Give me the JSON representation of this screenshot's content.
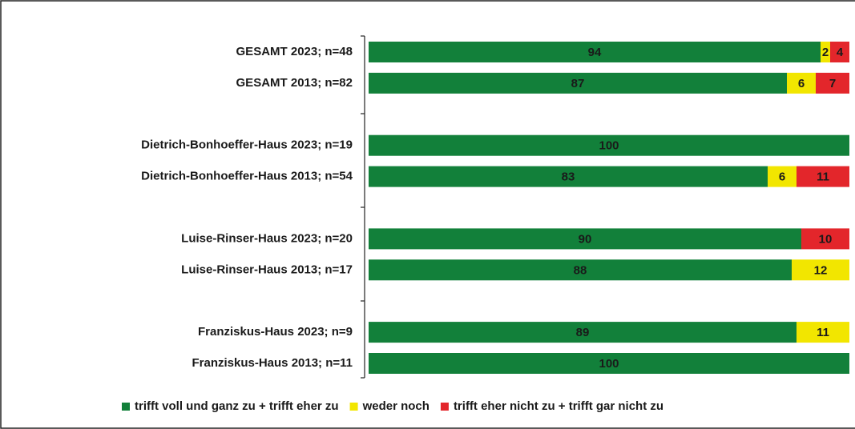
{
  "chart_data": {
    "type": "stacked-bar-horizontal",
    "categories": [
      "GESAMT 2023; n=48",
      "GESAMT 2013; n=82",
      null,
      "Dietrich-Bonhoeffer-Haus 2023; n=19",
      "Dietrich-Bonhoeffer-Haus 2013; n=54",
      null,
      "Luise-Rinser-Haus 2023; n=20",
      "Luise-Rinser-Haus 2013; n=17",
      null,
      "Franziskus-Haus 2023; n=9",
      "Franziskus-Haus 2013; n=11"
    ],
    "series": [
      {
        "name": "trifft voll und ganz zu + trifft eher zu",
        "color": "#12803a",
        "values": [
          94,
          87,
          null,
          100,
          83,
          null,
          90,
          88,
          null,
          89,
          100
        ]
      },
      {
        "name": "weder noch",
        "color": "#f2e600",
        "values": [
          2,
          6,
          null,
          null,
          6,
          null,
          null,
          12,
          null,
          11,
          null
        ]
      },
      {
        "name": "trifft eher nicht zu + trifft gar nicht zu",
        "color": "#e3262b",
        "values": [
          4,
          7,
          null,
          null,
          11,
          null,
          10,
          null,
          null,
          null,
          null
        ]
      }
    ],
    "xlim": [
      0,
      100
    ],
    "legend": "bottom"
  }
}
